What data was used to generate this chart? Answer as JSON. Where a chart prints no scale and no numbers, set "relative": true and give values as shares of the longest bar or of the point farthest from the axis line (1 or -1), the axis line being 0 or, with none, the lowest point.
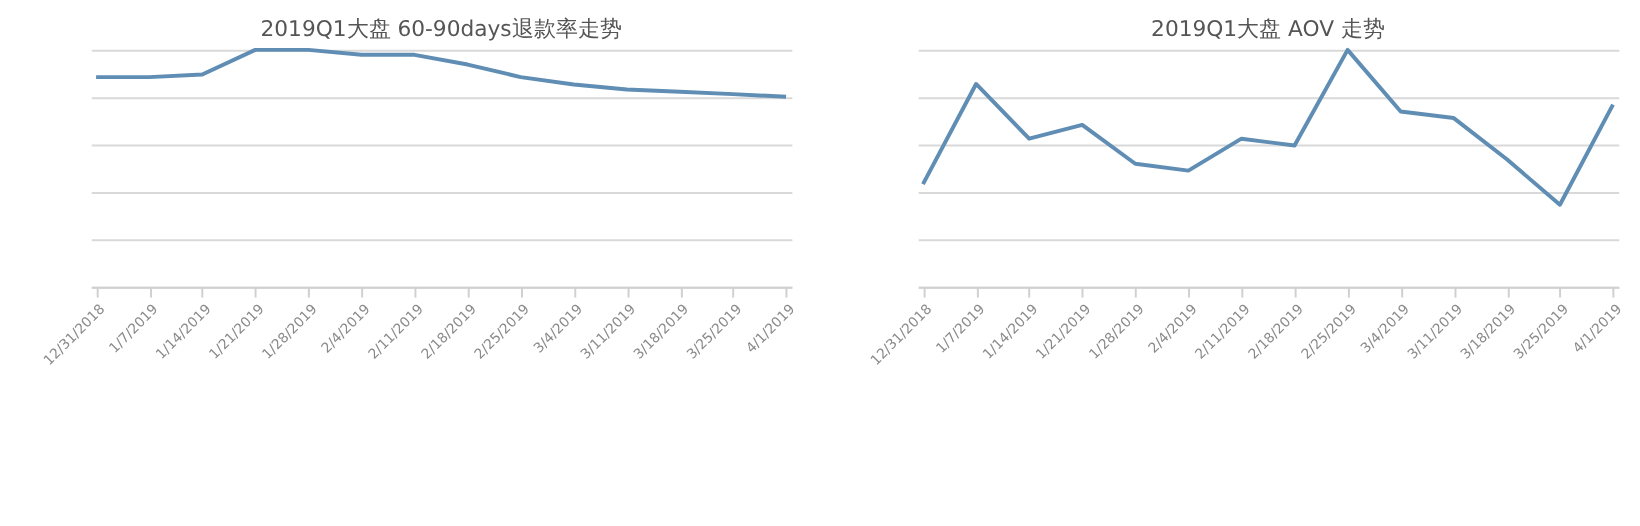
{
  "chart_data": [
    {
      "type": "line",
      "title": "2019Q1大盘 60-90days退款率走势",
      "relative": true,
      "grid": "y",
      "categories": [
        "12/31/2018",
        "1/7/2019",
        "1/14/2019",
        "1/21/2019",
        "1/28/2019",
        "2/4/2019",
        "2/11/2019",
        "2/18/2019",
        "2/25/2019",
        "3/4/2019",
        "3/11/2019",
        "3/18/2019",
        "3/25/2019",
        "4/1/2019"
      ],
      "series": [
        {
          "color": "#5f8db3",
          "values": [
            0.885,
            0.885,
            0.896,
            1,
            1,
            0.979,
            0.979,
            0.938,
            0.885,
            0.854,
            0.833,
            0.823,
            0.813,
            0.802
          ]
        }
      ]
    },
    {
      "type": "line",
      "title": "2019Q1大盘 AOV 走势",
      "relative": true,
      "grid": "y",
      "categories": [
        "12/31/2018",
        "1/7/2019",
        "1/14/2019",
        "1/21/2019",
        "1/28/2019",
        "2/4/2019",
        "2/11/2019",
        "2/18/2019",
        "2/25/2019",
        "3/4/2019",
        "3/11/2019",
        "3/18/2019",
        "3/25/2019",
        "4/1/2019"
      ],
      "series": [
        {
          "color": "#5f8db3",
          "values": [
            0.433,
            0.856,
            0.625,
            0.683,
            0.519,
            0.49,
            0.625,
            0.596,
            1,
            0.74,
            0.712,
            0.538,
            0.346,
            0.769
          ]
        }
      ]
    }
  ]
}
